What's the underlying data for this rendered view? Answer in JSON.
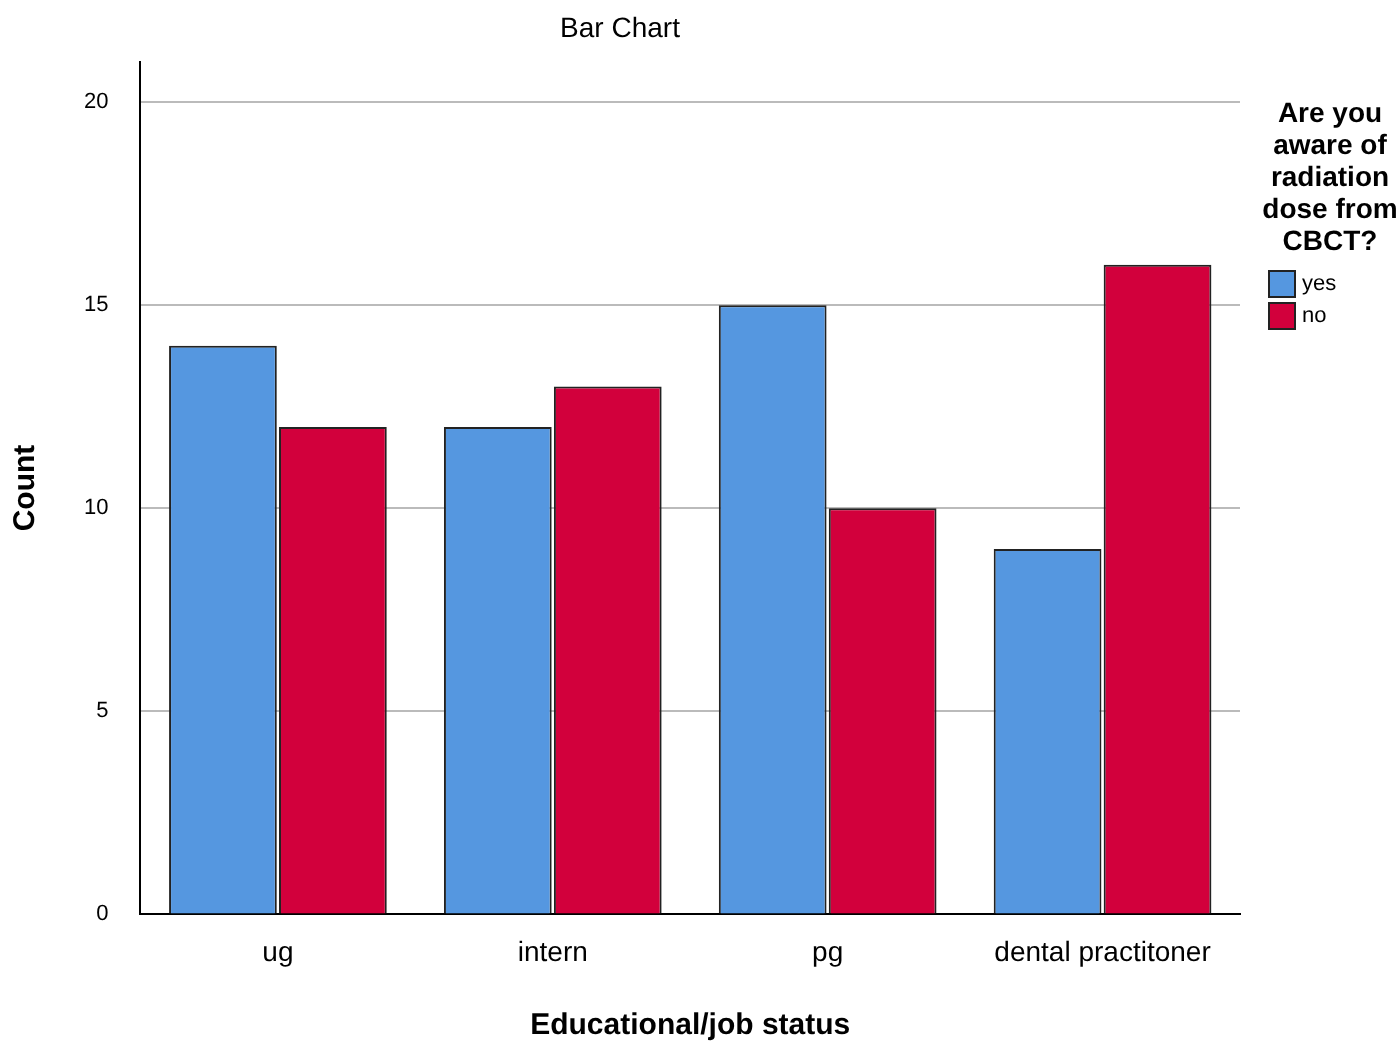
{
  "chart_data": {
    "type": "bar",
    "title": "Bar Chart",
    "xlabel": "Educational/job status",
    "ylabel": "Count",
    "legend_title": "Are you aware of radiation dose from CBCT?",
    "categories": [
      "ug",
      "intern",
      "pg",
      "dental practitoner"
    ],
    "series": [
      {
        "name": "yes",
        "color": "#5597e0",
        "values": [
          14,
          12,
          15,
          9
        ]
      },
      {
        "name": "no",
        "color": "#d2003c",
        "values": [
          12,
          13,
          10,
          16
        ]
      }
    ],
    "ylim": [
      0,
      21
    ],
    "yticks": [
      0,
      5,
      10,
      15,
      20
    ],
    "grid": "y",
    "legend": "right"
  }
}
